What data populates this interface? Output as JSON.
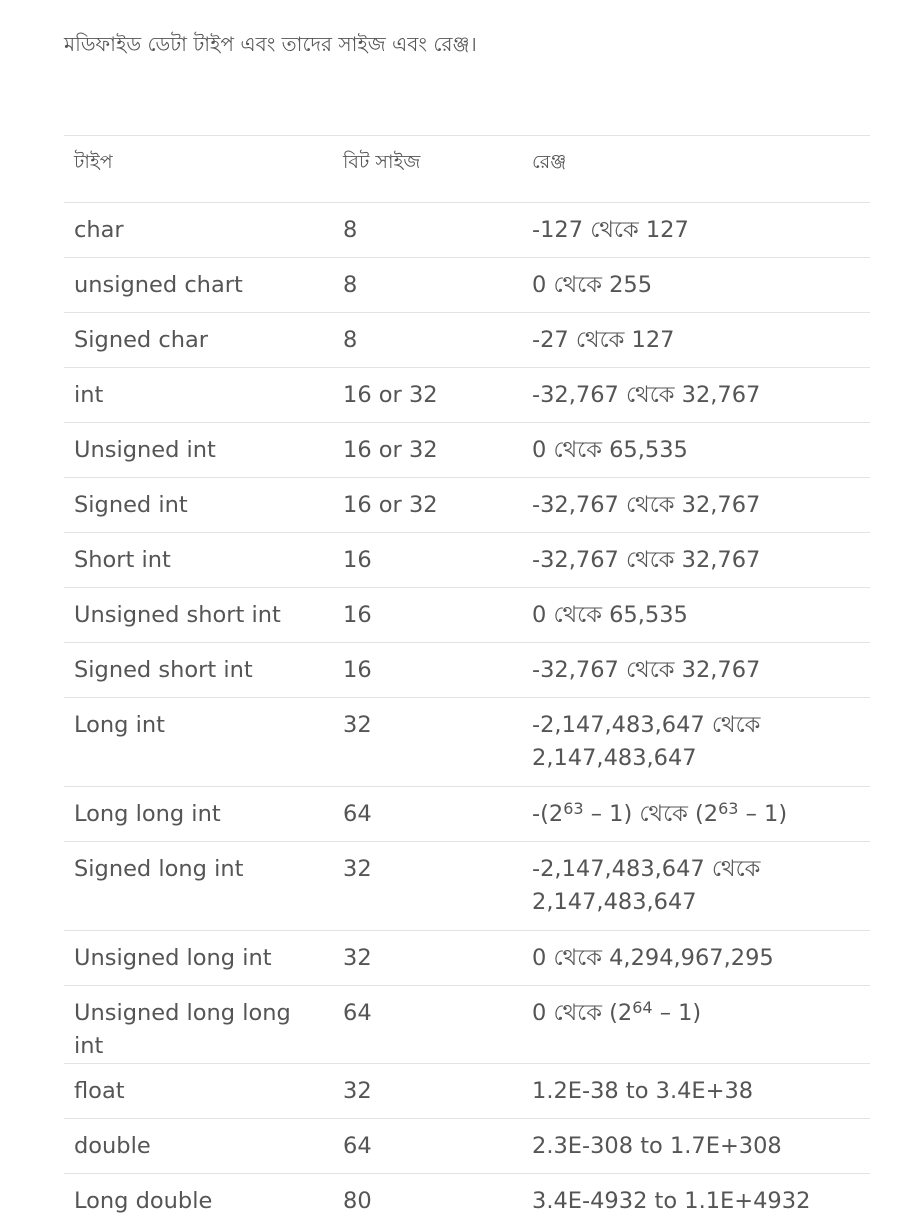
{
  "intro_text": "মডিফাইড ডেটা টাইপ এবং তাদের সাইজ এবং রেঞ্জ।",
  "table": {
    "headers": [
      "টাইপ",
      "বিট সাইজ",
      "রেঞ্জ"
    ],
    "rows": [
      {
        "type": "char",
        "bits": "8",
        "range": "-127 থেকে 127"
      },
      {
        "type": "unsigned chart",
        "bits": "8",
        "range": "0 থেকে 255"
      },
      {
        "type": "Signed char",
        "bits": "8",
        "range": "-27 থেকে 127"
      },
      {
        "type": "int",
        "bits": "16 or 32",
        "range": "-32,767 থেকে 32,767"
      },
      {
        "type": "Unsigned int",
        "bits": "16 or 32",
        "range": "0 থেকে 65,535"
      },
      {
        "type": "Signed int",
        "bits": "16 or 32",
        "range": "-32,767 থেকে 32,767"
      },
      {
        "type": "Short int",
        "bits": "16",
        "range": "-32,767 থেকে 32,767"
      },
      {
        "type": "Unsigned short int",
        "bits": "16",
        "range": "0 থেকে 65,535"
      },
      {
        "type": "Signed short int",
        "bits": "16",
        "range": "-32,767 থেকে 32,767"
      },
      {
        "type": "Long int",
        "bits": "32",
        "range": "-2,147,483,647 থেকে 2,147,483,647"
      },
      {
        "type": "Long long int",
        "bits": "64",
        "range_html": {
          "prefix": "-(2",
          "sup1": "63",
          "mid": " – 1) থেকে (2",
          "sup2": "63",
          "suffix": " – 1)"
        }
      },
      {
        "type": "Signed long int",
        "bits": "32",
        "range": "-2,147,483,647 থেকে 2,147,483,647"
      },
      {
        "type": "Unsigned long int",
        "bits": "32",
        "range": "0 থেকে 4,294,967,295"
      },
      {
        "type": "Unsigned long long int",
        "bits": "64",
        "range_html": {
          "prefix": "0 থেকে (2",
          "sup1": "64",
          "mid": " – 1)",
          "sup2": "",
          "suffix": ""
        }
      },
      {
        "type": "float",
        "bits": "32",
        "range": "1.2E-38 to 3.4E+38"
      },
      {
        "type": "double",
        "bits": "64",
        "range": "2.3E-308 to 1.7E+308"
      },
      {
        "type": "Long double",
        "bits": "80",
        "range": "3.4E-4932 to 1.1E+4932"
      }
    ]
  }
}
